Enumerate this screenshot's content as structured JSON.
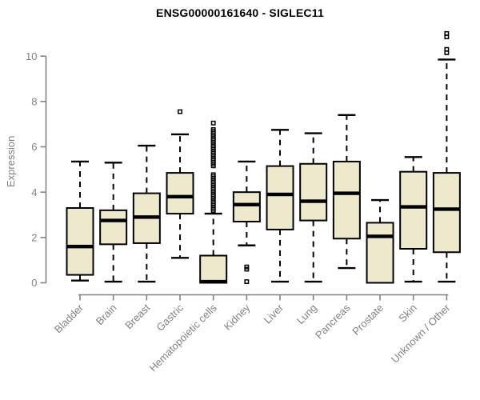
{
  "chart_data": {
    "type": "boxplot",
    "title": "ENSG00000161640 - SIGLEC11",
    "ylabel": "Expression",
    "xlabel": "",
    "ylim": [
      0,
      11.2
    ],
    "yticks": [
      0,
      2,
      4,
      6,
      8,
      10
    ],
    "grid": false,
    "legend": "none",
    "categories": [
      "Bladder",
      "Brain",
      "Breast",
      "Gastric",
      "Hematopoietic cells",
      "Kidney",
      "Liver",
      "Lung",
      "Pancreas",
      "Prostate",
      "Skin",
      "Unknown / Other"
    ],
    "boxes": [
      {
        "category": "Bladder",
        "whisker_low": 0.1,
        "q1": 0.35,
        "median": 1.6,
        "q3": 3.3,
        "whisker_high": 5.35,
        "outliers": []
      },
      {
        "category": "Brain",
        "whisker_low": 0.05,
        "q1": 1.7,
        "median": 2.75,
        "q3": 3.2,
        "whisker_high": 5.3,
        "outliers": []
      },
      {
        "category": "Breast",
        "whisker_low": 0.05,
        "q1": 1.75,
        "median": 2.9,
        "q3": 3.95,
        "whisker_high": 6.05,
        "outliers": []
      },
      {
        "category": "Gastric",
        "whisker_low": 1.1,
        "q1": 3.05,
        "median": 3.8,
        "q3": 4.85,
        "whisker_high": 6.55,
        "outliers": [
          7.55
        ]
      },
      {
        "category": "Hematopoietic cells",
        "whisker_low": 0,
        "q1": 0,
        "median": 0.05,
        "q3": 1.2,
        "whisker_high": 3.05,
        "outliers": [
          7.05,
          6.76,
          6.68,
          6.6,
          6.52,
          6.44,
          6.36,
          6.28,
          6.2,
          6.12,
          6.04,
          5.96,
          5.88,
          5.8,
          5.72,
          5.64,
          5.56,
          5.48,
          5.4,
          5.32,
          5.24,
          5.16,
          4.77,
          4.69,
          4.61,
          4.53,
          4.45,
          4.37,
          4.29,
          4.21,
          4.13,
          4.05,
          3.97,
          3.89,
          3.81,
          3.73,
          3.65,
          3.57,
          3.49,
          3.41,
          3.33,
          3.25,
          3.18
        ]
      },
      {
        "category": "Kidney",
        "whisker_low": 1.65,
        "q1": 2.7,
        "median": 3.45,
        "q3": 4.0,
        "whisker_high": 5.35,
        "outliers": [
          0.7,
          0.6,
          0.05
        ]
      },
      {
        "category": "Liver",
        "whisker_low": 0.05,
        "q1": 2.35,
        "median": 3.9,
        "q3": 5.15,
        "whisker_high": 6.75,
        "outliers": []
      },
      {
        "category": "Lung",
        "whisker_low": 0.05,
        "q1": 2.75,
        "median": 3.6,
        "q3": 5.25,
        "whisker_high": 6.6,
        "outliers": []
      },
      {
        "category": "Pancreas",
        "whisker_low": 0.65,
        "q1": 1.95,
        "median": 3.95,
        "q3": 5.35,
        "whisker_high": 7.4,
        "outliers": []
      },
      {
        "category": "Prostate",
        "whisker_low": 0,
        "q1": 0,
        "median": 2.05,
        "q3": 2.65,
        "whisker_high": 3.65,
        "outliers": []
      },
      {
        "category": "Skin",
        "whisker_low": 0.05,
        "q1": 1.5,
        "median": 3.35,
        "q3": 4.9,
        "whisker_high": 5.55,
        "outliers": []
      },
      {
        "category": "Unknown / Other",
        "whisker_low": 0.05,
        "q1": 1.35,
        "median": 3.25,
        "q3": 4.85,
        "whisker_high": 9.85,
        "outliers": [
          11.0,
          10.85,
          10.3,
          10.15
        ]
      }
    ],
    "colors": {
      "box_fill": "#EEE8CD",
      "box_border": "#000000",
      "median": "#000000",
      "whisker": "#000000",
      "outlier": "#000000",
      "axis": "#828282",
      "tick_label": "#828282",
      "title": "#000000",
      "background": "#ffffff"
    }
  }
}
